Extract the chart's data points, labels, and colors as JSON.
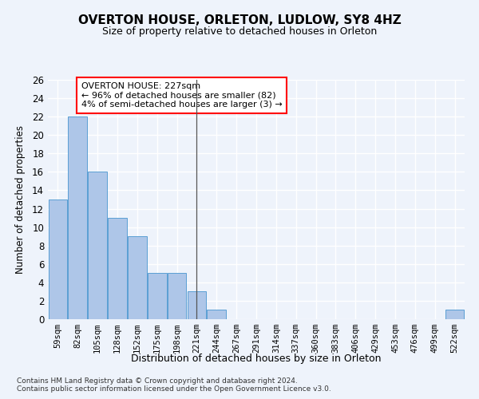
{
  "title": "OVERTON HOUSE, ORLETON, LUDLOW, SY8 4HZ",
  "subtitle": "Size of property relative to detached houses in Orleton",
  "xlabel": "Distribution of detached houses by size in Orleton",
  "ylabel": "Number of detached properties",
  "categories": [
    "59sqm",
    "82sqm",
    "105sqm",
    "128sqm",
    "152sqm",
    "175sqm",
    "198sqm",
    "221sqm",
    "244sqm",
    "267sqm",
    "291sqm",
    "314sqm",
    "337sqm",
    "360sqm",
    "383sqm",
    "406sqm",
    "429sqm",
    "453sqm",
    "476sqm",
    "499sqm",
    "522sqm"
  ],
  "values": [
    13,
    22,
    16,
    11,
    9,
    5,
    5,
    3,
    1,
    0,
    0,
    0,
    0,
    0,
    0,
    0,
    0,
    0,
    0,
    0,
    1
  ],
  "bar_color": "#aec6e8",
  "bar_edge_color": "#5a9fd4",
  "background_color": "#eef3fb",
  "grid_color": "#ffffff",
  "ylim": [
    0,
    26
  ],
  "yticks": [
    0,
    2,
    4,
    6,
    8,
    10,
    12,
    14,
    16,
    18,
    20,
    22,
    24,
    26
  ],
  "annotation_box_text": "OVERTON HOUSE: 227sqm\n← 96% of detached houses are smaller (82)\n4% of semi-detached houses are larger (3) →",
  "vline_x": 7.0,
  "footer_line1": "Contains HM Land Registry data © Crown copyright and database right 2024.",
  "footer_line2": "Contains public sector information licensed under the Open Government Licence v3.0."
}
